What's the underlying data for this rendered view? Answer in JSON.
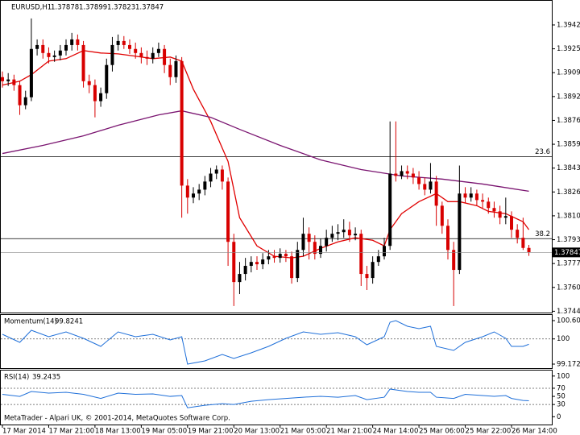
{
  "chart_data": [
    {
      "type": "candlestick",
      "title": "EURUSD,H1",
      "up_color": "#000000",
      "down_color": "#d80000",
      "ohlc": [
        [
          1.39059,
          1.39098,
          1.38987,
          1.39031
        ],
        [
          1.39031,
          1.39087,
          1.38998,
          1.39043
        ],
        [
          1.39043,
          1.39076,
          1.38965,
          1.39004
        ],
        [
          1.39004,
          1.39031,
          1.38798,
          1.38865
        ],
        [
          1.38865,
          1.38965,
          1.38837,
          1.3892
        ],
        [
          1.3892,
          1.39465,
          1.38893,
          1.39254
        ],
        [
          1.39254,
          1.3932,
          1.39209,
          1.39281
        ],
        [
          1.39281,
          1.3932,
          1.39187,
          1.39226
        ],
        [
          1.39226,
          1.39265,
          1.39154,
          1.39198
        ],
        [
          1.39198,
          1.39243,
          1.39165,
          1.39209
        ],
        [
          1.39209,
          1.39281,
          1.39176,
          1.39243
        ],
        [
          1.39243,
          1.3932,
          1.39209,
          1.39281
        ],
        [
          1.39281,
          1.39365,
          1.39243,
          1.3932
        ],
        [
          1.3932,
          1.39354,
          1.39243,
          1.39281
        ],
        [
          1.39281,
          1.39309,
          1.38987,
          1.39031
        ],
        [
          1.39031,
          1.39076,
          1.38948,
          1.39004
        ],
        [
          1.39004,
          1.39043,
          1.38781,
          1.38893
        ],
        [
          1.38893,
          1.38987,
          1.38854,
          1.38948
        ],
        [
          1.38948,
          1.39187,
          1.38909,
          1.39143
        ],
        [
          1.39143,
          1.39337,
          1.39098,
          1.39281
        ],
        [
          1.39281,
          1.39354,
          1.39243,
          1.39309
        ],
        [
          1.39309,
          1.39343,
          1.39254,
          1.39281
        ],
        [
          1.39281,
          1.3932,
          1.3922,
          1.39254
        ],
        [
          1.39254,
          1.39298,
          1.39187,
          1.39226
        ],
        [
          1.39226,
          1.39265,
          1.39154,
          1.39198
        ],
        [
          1.39198,
          1.39243,
          1.39143,
          1.39187
        ],
        [
          1.39187,
          1.39265,
          1.39154,
          1.39226
        ],
        [
          1.39226,
          1.39298,
          1.39198,
          1.39254
        ],
        [
          1.39254,
          1.39281,
          1.39087,
          1.39143
        ],
        [
          1.39143,
          1.39187,
          1.39004,
          1.39059
        ],
        [
          1.39059,
          1.39209,
          1.3902,
          1.3917
        ],
        [
          1.3917,
          1.39198,
          1.38087,
          1.38309
        ],
        [
          1.38309,
          1.38354,
          1.38115,
          1.38226
        ],
        [
          1.38226,
          1.38298,
          1.38187,
          1.38254
        ],
        [
          1.38254,
          1.3832,
          1.38209,
          1.38281
        ],
        [
          1.38281,
          1.38376,
          1.38242,
          1.38337
        ],
        [
          1.38337,
          1.38431,
          1.38298,
          1.38392
        ],
        [
          1.38392,
          1.38448,
          1.38354,
          1.3842
        ],
        [
          1.3842,
          1.38448,
          1.38281,
          1.38337
        ],
        [
          1.38337,
          1.38365,
          1.37754,
          1.3792
        ],
        [
          1.3792,
          1.37976,
          1.37476,
          1.37642
        ],
        [
          1.37642,
          1.37781,
          1.37559,
          1.37698
        ],
        [
          1.37698,
          1.37809,
          1.37653,
          1.37754
        ],
        [
          1.37754,
          1.3782,
          1.37709,
          1.37781
        ],
        [
          1.37781,
          1.3782,
          1.37726,
          1.37765
        ],
        [
          1.37765,
          1.37842,
          1.37731,
          1.37798
        ],
        [
          1.37798,
          1.37864,
          1.37765,
          1.3782
        ],
        [
          1.3782,
          1.37864,
          1.37776,
          1.37809
        ],
        [
          1.37809,
          1.37875,
          1.37776,
          1.37837
        ],
        [
          1.37837,
          1.37864,
          1.37781,
          1.3782
        ],
        [
          1.3782,
          1.37853,
          1.37631,
          1.3767
        ],
        [
          1.3767,
          1.3792,
          1.37642,
          1.37864
        ],
        [
          1.37864,
          1.38087,
          1.3782,
          1.37976
        ],
        [
          1.37976,
          1.3802,
          1.37798,
          1.3792
        ],
        [
          1.3792,
          1.37965,
          1.37798,
          1.37837
        ],
        [
          1.37837,
          1.37942,
          1.37809,
          1.37892
        ],
        [
          1.37892,
          1.38004,
          1.37853,
          1.37948
        ],
        [
          1.37948,
          1.38031,
          1.3792,
          1.37976
        ],
        [
          1.37976,
          1.38042,
          1.37931,
          1.37987
        ],
        [
          1.37987,
          1.38076,
          1.37948,
          1.38004
        ],
        [
          1.38004,
          1.38059,
          1.3792,
          1.37965
        ],
        [
          1.37965,
          1.3802,
          1.37931,
          1.37976
        ],
        [
          1.37976,
          1.38004,
          1.37615,
          1.37698
        ],
        [
          1.37698,
          1.37754,
          1.37587,
          1.3767
        ],
        [
          1.3767,
          1.3782,
          1.37631,
          1.37781
        ],
        [
          1.37781,
          1.37864,
          1.37754,
          1.3782
        ],
        [
          1.3782,
          1.37948,
          1.37798,
          1.37892
        ],
        [
          1.37892,
          1.38753,
          1.37864,
          1.38392
        ],
        [
          1.38392,
          1.38753,
          1.38337,
          1.38376
        ],
        [
          1.38376,
          1.38448,
          1.38354,
          1.38409
        ],
        [
          1.38409,
          1.38448,
          1.38354,
          1.38392
        ],
        [
          1.38392,
          1.38431,
          1.3832,
          1.38365
        ],
        [
          1.38365,
          1.38409,
          1.38281,
          1.3832
        ],
        [
          1.3832,
          1.38365,
          1.38242,
          1.38281
        ],
        [
          1.38281,
          1.38465,
          1.38254,
          1.38337
        ],
        [
          1.38337,
          1.38376,
          1.38031,
          1.3817
        ],
        [
          1.3817,
          1.38198,
          1.37976,
          1.38031
        ],
        [
          1.38031,
          1.38076,
          1.37798,
          1.37864
        ],
        [
          1.37864,
          1.3792,
          1.37476,
          1.37726
        ],
        [
          1.37726,
          1.38448,
          1.37698,
          1.38254
        ],
        [
          1.38254,
          1.38298,
          1.38187,
          1.38226
        ],
        [
          1.38226,
          1.38298,
          1.38198,
          1.38254
        ],
        [
          1.38254,
          1.38281,
          1.3817,
          1.38209
        ],
        [
          1.38209,
          1.38254,
          1.38154,
          1.38198
        ],
        [
          1.38198,
          1.38226,
          1.38115,
          1.38154
        ],
        [
          1.38154,
          1.38198,
          1.38087,
          1.38131
        ],
        [
          1.38131,
          1.3817,
          1.38042,
          1.38087
        ],
        [
          1.38087,
          1.38226,
          1.38042,
          1.38098
        ],
        [
          1.38098,
          1.38131,
          1.37948,
          1.38004
        ],
        [
          1.38004,
          1.38042,
          1.37909,
          1.37948
        ],
        [
          1.37948,
          1.38087,
          1.37864,
          1.37878
        ],
        [
          1.37878,
          1.37899,
          1.37823,
          1.37847
        ]
      ],
      "overlays": [
        {
          "color": "#e00000",
          "x": [
            0,
            3,
            5,
            8,
            11,
            14,
            17,
            20,
            23,
            26,
            29,
            31,
            33,
            36,
            39,
            41,
            44,
            47,
            50,
            52,
            55,
            58,
            61,
            64,
            66,
            67,
            69,
            72,
            75,
            77,
            79,
            82,
            84,
            87,
            90,
            91
          ],
          "values": [
            1.39004,
            1.39031,
            1.39076,
            1.3917,
            1.39187,
            1.39243,
            1.39226,
            1.3922,
            1.39204,
            1.39187,
            1.39198,
            1.3917,
            1.38976,
            1.38753,
            1.38476,
            1.38087,
            1.37892,
            1.3782,
            1.37809,
            1.3782,
            1.37875,
            1.3792,
            1.37948,
            1.37931,
            1.37892,
            1.38004,
            1.38115,
            1.38198,
            1.38254,
            1.38198,
            1.38198,
            1.3817,
            1.38131,
            1.38115,
            1.38059,
            1.38004
          ]
        },
        {
          "color": "#7a1470",
          "x": [
            0,
            7,
            14,
            20,
            27,
            31,
            36,
            41,
            48,
            55,
            62,
            69,
            76,
            83,
            91
          ],
          "values": [
            1.38531,
            1.38587,
            1.38653,
            1.38726,
            1.38798,
            1.38826,
            1.38781,
            1.38698,
            1.38587,
            1.38487,
            1.3842,
            1.38376,
            1.38354,
            1.3832,
            1.3827
          ]
        }
      ],
      "levels": [
        {
          "value": 1.38509,
          "label": "23.6"
        },
        {
          "value": 1.37942,
          "label": "38.2"
        }
      ],
      "ylim": [
        1.37431,
        1.39587
      ],
      "yticks": [
        {
          "value": 1.3942,
          "label": "1.39420"
        },
        1.39255,
        {
          "value": 1.3909,
          "label": "1.39090"
        },
        1.38925,
        {
          "value": 1.3876,
          "label": "1.38760"
        },
        1.38595,
        {
          "value": 1.3843,
          "label": "1.38430"
        },
        1.38265,
        {
          "value": 1.381,
          "label": "1.38100"
        },
        1.37935,
        {
          "value": 1.3777,
          "label": "1.37770"
        },
        1.37605,
        {
          "value": 1.3744,
          "label": "1.37440"
        }
      ],
      "xticks": [
        {
          "value": 0,
          "label": "17 Mar 2014"
        },
        {
          "value": 8,
          "label": "17 Mar 21:00"
        },
        {
          "value": 16,
          "label": "18 Mar 13:00"
        },
        {
          "value": 24,
          "label": "19 Mar 05:00"
        },
        {
          "value": 32,
          "label": "19 Mar 21:00"
        },
        {
          "value": 40,
          "label": "20 Mar 13:00"
        },
        {
          "value": 48,
          "label": "21 Mar 05:00"
        },
        {
          "value": 56,
          "label": "21 Mar 21:00"
        },
        {
          "value": 64,
          "label": "24 Mar 14:00"
        },
        {
          "value": 72,
          "label": "25 Mar 06:00"
        },
        {
          "value": 80,
          "label": "25 Mar 22:00"
        },
        {
          "value": 88,
          "label": "26 Mar 14:00"
        }
      ]
    },
    {
      "type": "line",
      "title": "Momentum(14)",
      "color": "#1e6fd9",
      "x": [
        0,
        3,
        5,
        8,
        11,
        14,
        17,
        20,
        23,
        26,
        29,
        31,
        32,
        35,
        38,
        40,
        43,
        46,
        49,
        52,
        55,
        58,
        61,
        63,
        66,
        67,
        68,
        70,
        72,
        74,
        75,
        78,
        80,
        83,
        85,
        87,
        88,
        90,
        91
      ],
      "values": [
        100.1518,
        99.887,
        100.2842,
        100.0724,
        100.2312,
        100.0194,
        99.7547,
        100.2312,
        100.0724,
        100.1518,
        99.9665,
        100.0724,
        99.1722,
        99.2781,
        99.4899,
        99.3575,
        99.5429,
        99.7547,
        100.0194,
        100.2312,
        100.1518,
        100.2048,
        100.0724,
        99.8076,
        100.0724,
        100.5489,
        100.6019,
        100.4166,
        100.3371,
        100.4166,
        99.7547,
        99.6223,
        99.887,
        100.0724,
        100.2312,
        100.0194,
        99.7547,
        99.7547,
        99.8241
      ],
      "levels": [
        100
      ],
      "ylim": [
        99.0398,
        100.7872
      ],
      "yticks": [
        100.6019,
        100,
        99.1722
      ]
    },
    {
      "type": "line",
      "title": "RSI(14)",
      "color": "#1e6fd9",
      "x": [
        0,
        3,
        5,
        8,
        11,
        14,
        17,
        20,
        23,
        26,
        29,
        31,
        32,
        35,
        38,
        40,
        43,
        46,
        49,
        52,
        55,
        58,
        61,
        63,
        66,
        67,
        68,
        70,
        72,
        74,
        75,
        78,
        80,
        83,
        85,
        87,
        88,
        90,
        91
      ],
      "values": [
        55,
        50,
        62,
        58,
        60,
        55,
        45,
        58,
        55,
        56,
        50,
        52,
        22,
        28,
        32,
        30,
        38,
        42,
        45,
        48,
        50,
        48,
        52,
        42,
        48,
        68,
        66,
        62,
        60,
        60,
        48,
        45,
        55,
        52,
        50,
        52,
        45,
        40,
        39.2435
      ],
      "levels": [
        70,
        30
      ],
      "ylim": [
        -19.2,
        113.5
      ],
      "yticks": [
        100,
        70,
        50,
        30,
        0
      ]
    }
  ],
  "footer": "MetaTrader - Alpari UK, © 2001-2014, MetaQuotes Software Corp."
}
